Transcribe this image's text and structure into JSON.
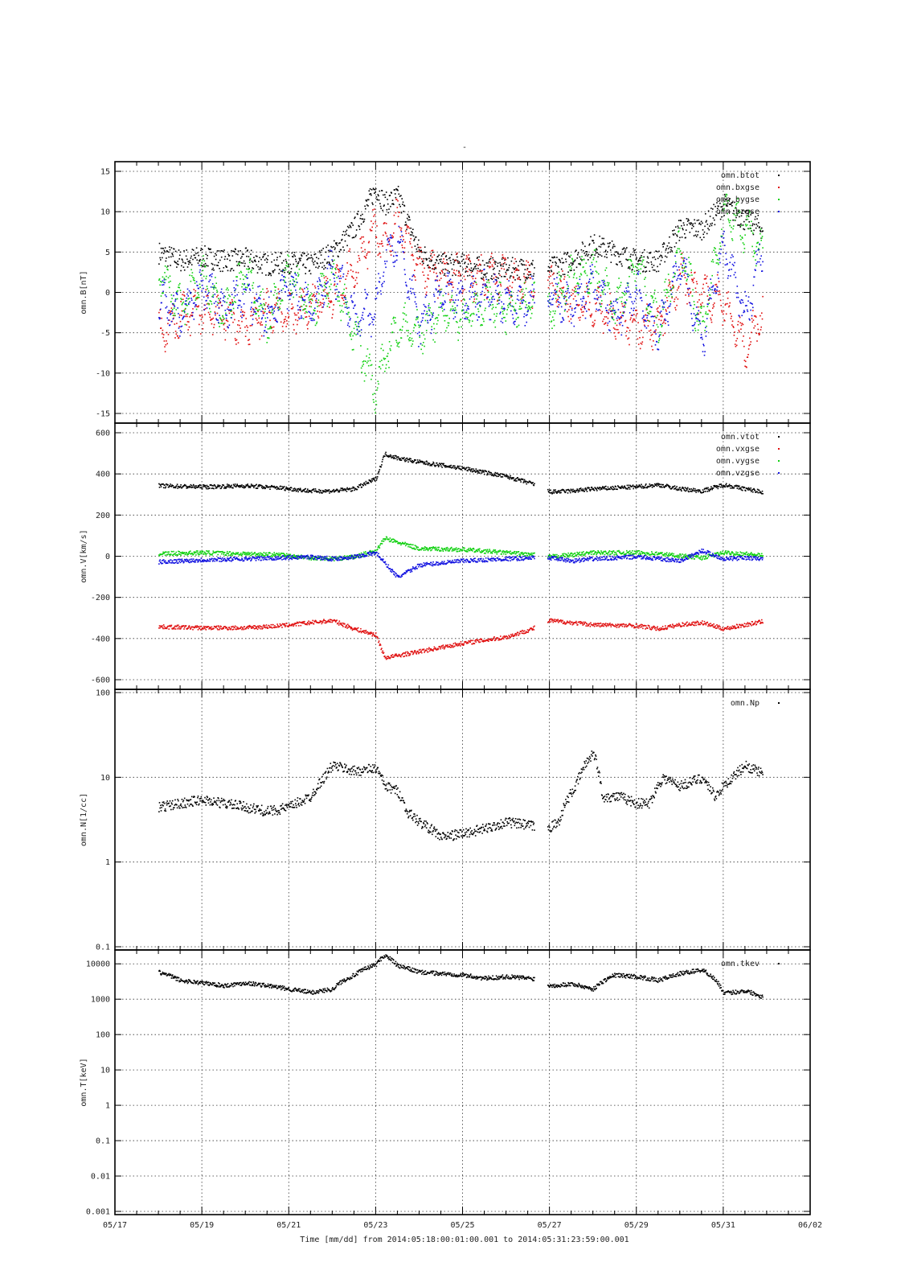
{
  "title": "-",
  "x_axis": {
    "ticks": [
      "05/17",
      "05/19",
      "05/21",
      "05/23",
      "05/25",
      "05/27",
      "05/29",
      "05/31",
      "06/02"
    ],
    "label": "Time [mm/dd]  from 2014:05:18:00:01:00.001  to  2014:05:31:23:59:00.001"
  },
  "colors": {
    "black": "#000000",
    "red": "#e01010",
    "green": "#10d010",
    "blue": "#1010e0"
  },
  "chart_data": [
    {
      "type": "scatter",
      "ylabel": "omn.B[nT]",
      "ylim": [
        -15,
        15
      ],
      "yticks": [
        "15",
        "10",
        "5",
        "0",
        "-5",
        "-10",
        "-15"
      ],
      "xlim_days": [
        17,
        33
      ],
      "legend": [
        "omn.btot",
        "omn.bxgse",
        "omn.bygse",
        "omn.bzgse"
      ],
      "legend_position": "top-right",
      "series": [
        {
          "name": "omn.btot",
          "color": "black",
          "x": [
            18.0,
            18.5,
            19,
            19.5,
            20,
            20.5,
            21,
            21.5,
            22,
            22.5,
            23,
            23.2,
            23.5,
            24,
            24.5,
            25,
            25.5,
            26,
            26.6,
            27,
            27.5,
            28,
            28.5,
            29,
            29.5,
            30,
            30.5,
            31,
            31.5,
            31.9
          ],
          "y": [
            5,
            4,
            4.5,
            4,
            4.2,
            3.5,
            3.8,
            3.5,
            5,
            8,
            13,
            11,
            12,
            5,
            3.5,
            3.5,
            3,
            3,
            3,
            3,
            4,
            6,
            5,
            4,
            4,
            8,
            8,
            11,
            9,
            8
          ]
        },
        {
          "name": "omn.bxgse",
          "color": "red",
          "x": [
            18.0,
            18.5,
            19,
            19.5,
            20,
            20.5,
            21,
            21.5,
            22,
            22.5,
            23,
            23.2,
            23.5,
            24,
            24.5,
            25,
            25.5,
            26,
            26.6,
            27,
            27.5,
            28,
            28.5,
            29,
            29.5,
            30,
            30.5,
            31,
            31.5,
            31.9
          ],
          "y": [
            -5,
            -3,
            -2,
            -3,
            -4,
            -2,
            -3,
            -1,
            0,
            3,
            8,
            6,
            9,
            3,
            2,
            2,
            2,
            2,
            1,
            1,
            -1,
            -2,
            -3,
            -4,
            -4,
            2,
            0,
            -1,
            -7,
            -2
          ]
        },
        {
          "name": "omn.bygse",
          "color": "green",
          "x": [
            18.0,
            18.5,
            19,
            19.5,
            20,
            20.5,
            21,
            21.5,
            22,
            22.5,
            23,
            23.2,
            23.5,
            24,
            24.5,
            25,
            25.5,
            26,
            26.6,
            27,
            27.5,
            28,
            28.5,
            29,
            29.5,
            30,
            30.5,
            31,
            31.5,
            31.9
          ],
          "y": [
            3,
            -2,
            2,
            -3,
            3,
            -4,
            3,
            -2,
            2,
            -5,
            -12,
            -8,
            -4,
            -5,
            -2,
            -3,
            -1,
            -2,
            -1,
            -2,
            2,
            3,
            -2,
            4,
            -4,
            6,
            -5,
            10,
            8,
            5
          ]
        },
        {
          "name": "omn.bzgse",
          "color": "blue",
          "x": [
            18.0,
            18.5,
            19,
            19.5,
            20,
            20.5,
            21,
            21.5,
            22,
            22.5,
            23,
            23.2,
            23.5,
            24,
            24.5,
            25,
            25.5,
            26,
            26.6,
            27,
            27.5,
            28,
            28.5,
            29,
            29.5,
            30,
            30.5,
            31,
            31.5,
            31.9
          ],
          "y": [
            -1,
            -3,
            1,
            -2,
            0,
            -3,
            1,
            -2,
            3,
            -3,
            -2,
            4,
            7,
            -4,
            0,
            -1,
            0,
            -1,
            -1,
            0,
            -2,
            1,
            -3,
            0,
            -5,
            4,
            -6,
            6,
            -3,
            6
          ]
        }
      ]
    },
    {
      "type": "scatter",
      "ylabel": "omn.V[km/s]",
      "ylim": [
        -600,
        600
      ],
      "yticks": [
        "600",
        "400",
        "200",
        "0",
        "-200",
        "-400",
        "-600"
      ],
      "xlim_days": [
        17,
        33
      ],
      "legend": [
        "omn.vtot",
        "omn.vxgse",
        "omn.vygse",
        "omn.vzgse"
      ],
      "legend_position": "top-right",
      "series": [
        {
          "name": "omn.vtot",
          "color": "black",
          "x": [
            18.0,
            19,
            20,
            20.8,
            21.5,
            22,
            22.5,
            23,
            23.2,
            23.5,
            24,
            25,
            26,
            26.6,
            27,
            27.5,
            28,
            29,
            29.5,
            30,
            30.5,
            31,
            31.5,
            31.9
          ],
          "y": [
            345,
            340,
            345,
            335,
            320,
            320,
            330,
            380,
            500,
            480,
            460,
            430,
            390,
            355,
            315,
            320,
            330,
            340,
            350,
            330,
            320,
            350,
            330,
            315
          ]
        },
        {
          "name": "omn.vxgse",
          "color": "red",
          "x": [
            18.0,
            19,
            20,
            20.8,
            21.5,
            22,
            22.5,
            23,
            23.2,
            23.5,
            24,
            25,
            26,
            26.6,
            27,
            27.5,
            28,
            29,
            29.5,
            30,
            30.5,
            31,
            31.5,
            31.9
          ],
          "y": [
            -340,
            -345,
            -345,
            -335,
            -320,
            -310,
            -350,
            -380,
            -490,
            -480,
            -460,
            -420,
            -390,
            -350,
            -310,
            -320,
            -330,
            -335,
            -350,
            -330,
            -320,
            -350,
            -330,
            -315
          ]
        },
        {
          "name": "omn.vygse",
          "color": "green",
          "x": [
            18.0,
            19,
            20,
            20.8,
            21.5,
            22,
            22.5,
            23,
            23.2,
            23.5,
            24,
            25,
            26,
            26.6,
            27,
            27.5,
            28,
            29,
            29.5,
            30,
            30.5,
            31,
            31.5,
            31.9
          ],
          "y": [
            15,
            20,
            15,
            10,
            -5,
            -10,
            0,
            30,
            90,
            70,
            40,
            35,
            20,
            10,
            0,
            10,
            20,
            20,
            15,
            5,
            -5,
            20,
            15,
            5
          ]
        },
        {
          "name": "omn.vzgse",
          "color": "blue",
          "x": [
            18.0,
            19,
            20,
            20.8,
            21.5,
            22,
            22.5,
            23,
            23.2,
            23.5,
            24,
            25,
            26,
            26.6,
            27,
            27.5,
            28,
            29,
            29.5,
            30,
            30.5,
            31,
            31.5,
            31.9
          ],
          "y": [
            -25,
            -15,
            -10,
            -5,
            0,
            -10,
            0,
            20,
            -30,
            -100,
            -40,
            -20,
            -10,
            -5,
            -5,
            -20,
            -10,
            0,
            -10,
            -20,
            30,
            -10,
            -5,
            -10
          ]
        }
      ]
    },
    {
      "type": "scatter",
      "ylabel": "omn.N[1/cc]",
      "ylim": [
        0.1,
        100
      ],
      "log_y": true,
      "yticks": [
        "100",
        "10",
        "1",
        "0.1"
      ],
      "xlim_days": [
        17,
        33
      ],
      "legend": [
        "omn.Np"
      ],
      "legend_position": "top-right",
      "series": [
        {
          "name": "omn.Np",
          "color": "black",
          "x": [
            18.0,
            18.5,
            19,
            19.5,
            20,
            20.5,
            21,
            21.5,
            21.8,
            22,
            22.5,
            23,
            23.2,
            23.5,
            23.7,
            24,
            24.5,
            25,
            25.5,
            26,
            26.6,
            26.9,
            27.2,
            27.6,
            28,
            28.2,
            28.6,
            29,
            29.3,
            29.6,
            30,
            30.5,
            30.8,
            31,
            31.2,
            31.5,
            31.9
          ],
          "y": [
            4.5,
            5,
            5.5,
            5,
            4.5,
            4,
            4.5,
            6,
            10,
            14,
            12,
            13,
            8,
            7,
            4,
            3,
            2,
            2.2,
            2.5,
            3,
            2.7,
            2.4,
            3,
            8,
            20,
            6,
            6,
            5,
            5,
            10,
            8,
            10,
            6,
            8,
            10,
            14,
            11
          ]
        }
      ]
    },
    {
      "type": "scatter",
      "ylabel": "omn.T[keV]",
      "ylim": [
        0.001,
        20000
      ],
      "log_y": true,
      "yticks": [
        "10000",
        "1000",
        "100",
        "10",
        "1",
        "0.1",
        "0.01",
        "0.001"
      ],
      "xlim_days": [
        17,
        33
      ],
      "legend": [
        "omn.tkev"
      ],
      "legend_position": "top-right",
      "series": [
        {
          "name": "omn.tkev",
          "color": "black",
          "x": [
            18.0,
            18.5,
            19,
            19.5,
            20,
            20.5,
            21,
            21.5,
            22,
            22.5,
            23,
            23.2,
            23.5,
            24,
            24.5,
            25,
            25.5,
            26,
            26.6,
            27,
            27.5,
            28,
            28.5,
            29,
            29.5,
            30,
            30.5,
            31,
            31.5,
            31.9
          ],
          "y": [
            6000,
            3500,
            3000,
            2500,
            3000,
            2500,
            2000,
            1600,
            2000,
            5000,
            10000,
            18000,
            9000,
            6000,
            5500,
            5000,
            4000,
            4500,
            4000,
            2500,
            2800,
            2000,
            5000,
            4500,
            3500,
            5500,
            7000,
            1500,
            1800,
            1200
          ]
        }
      ]
    }
  ]
}
